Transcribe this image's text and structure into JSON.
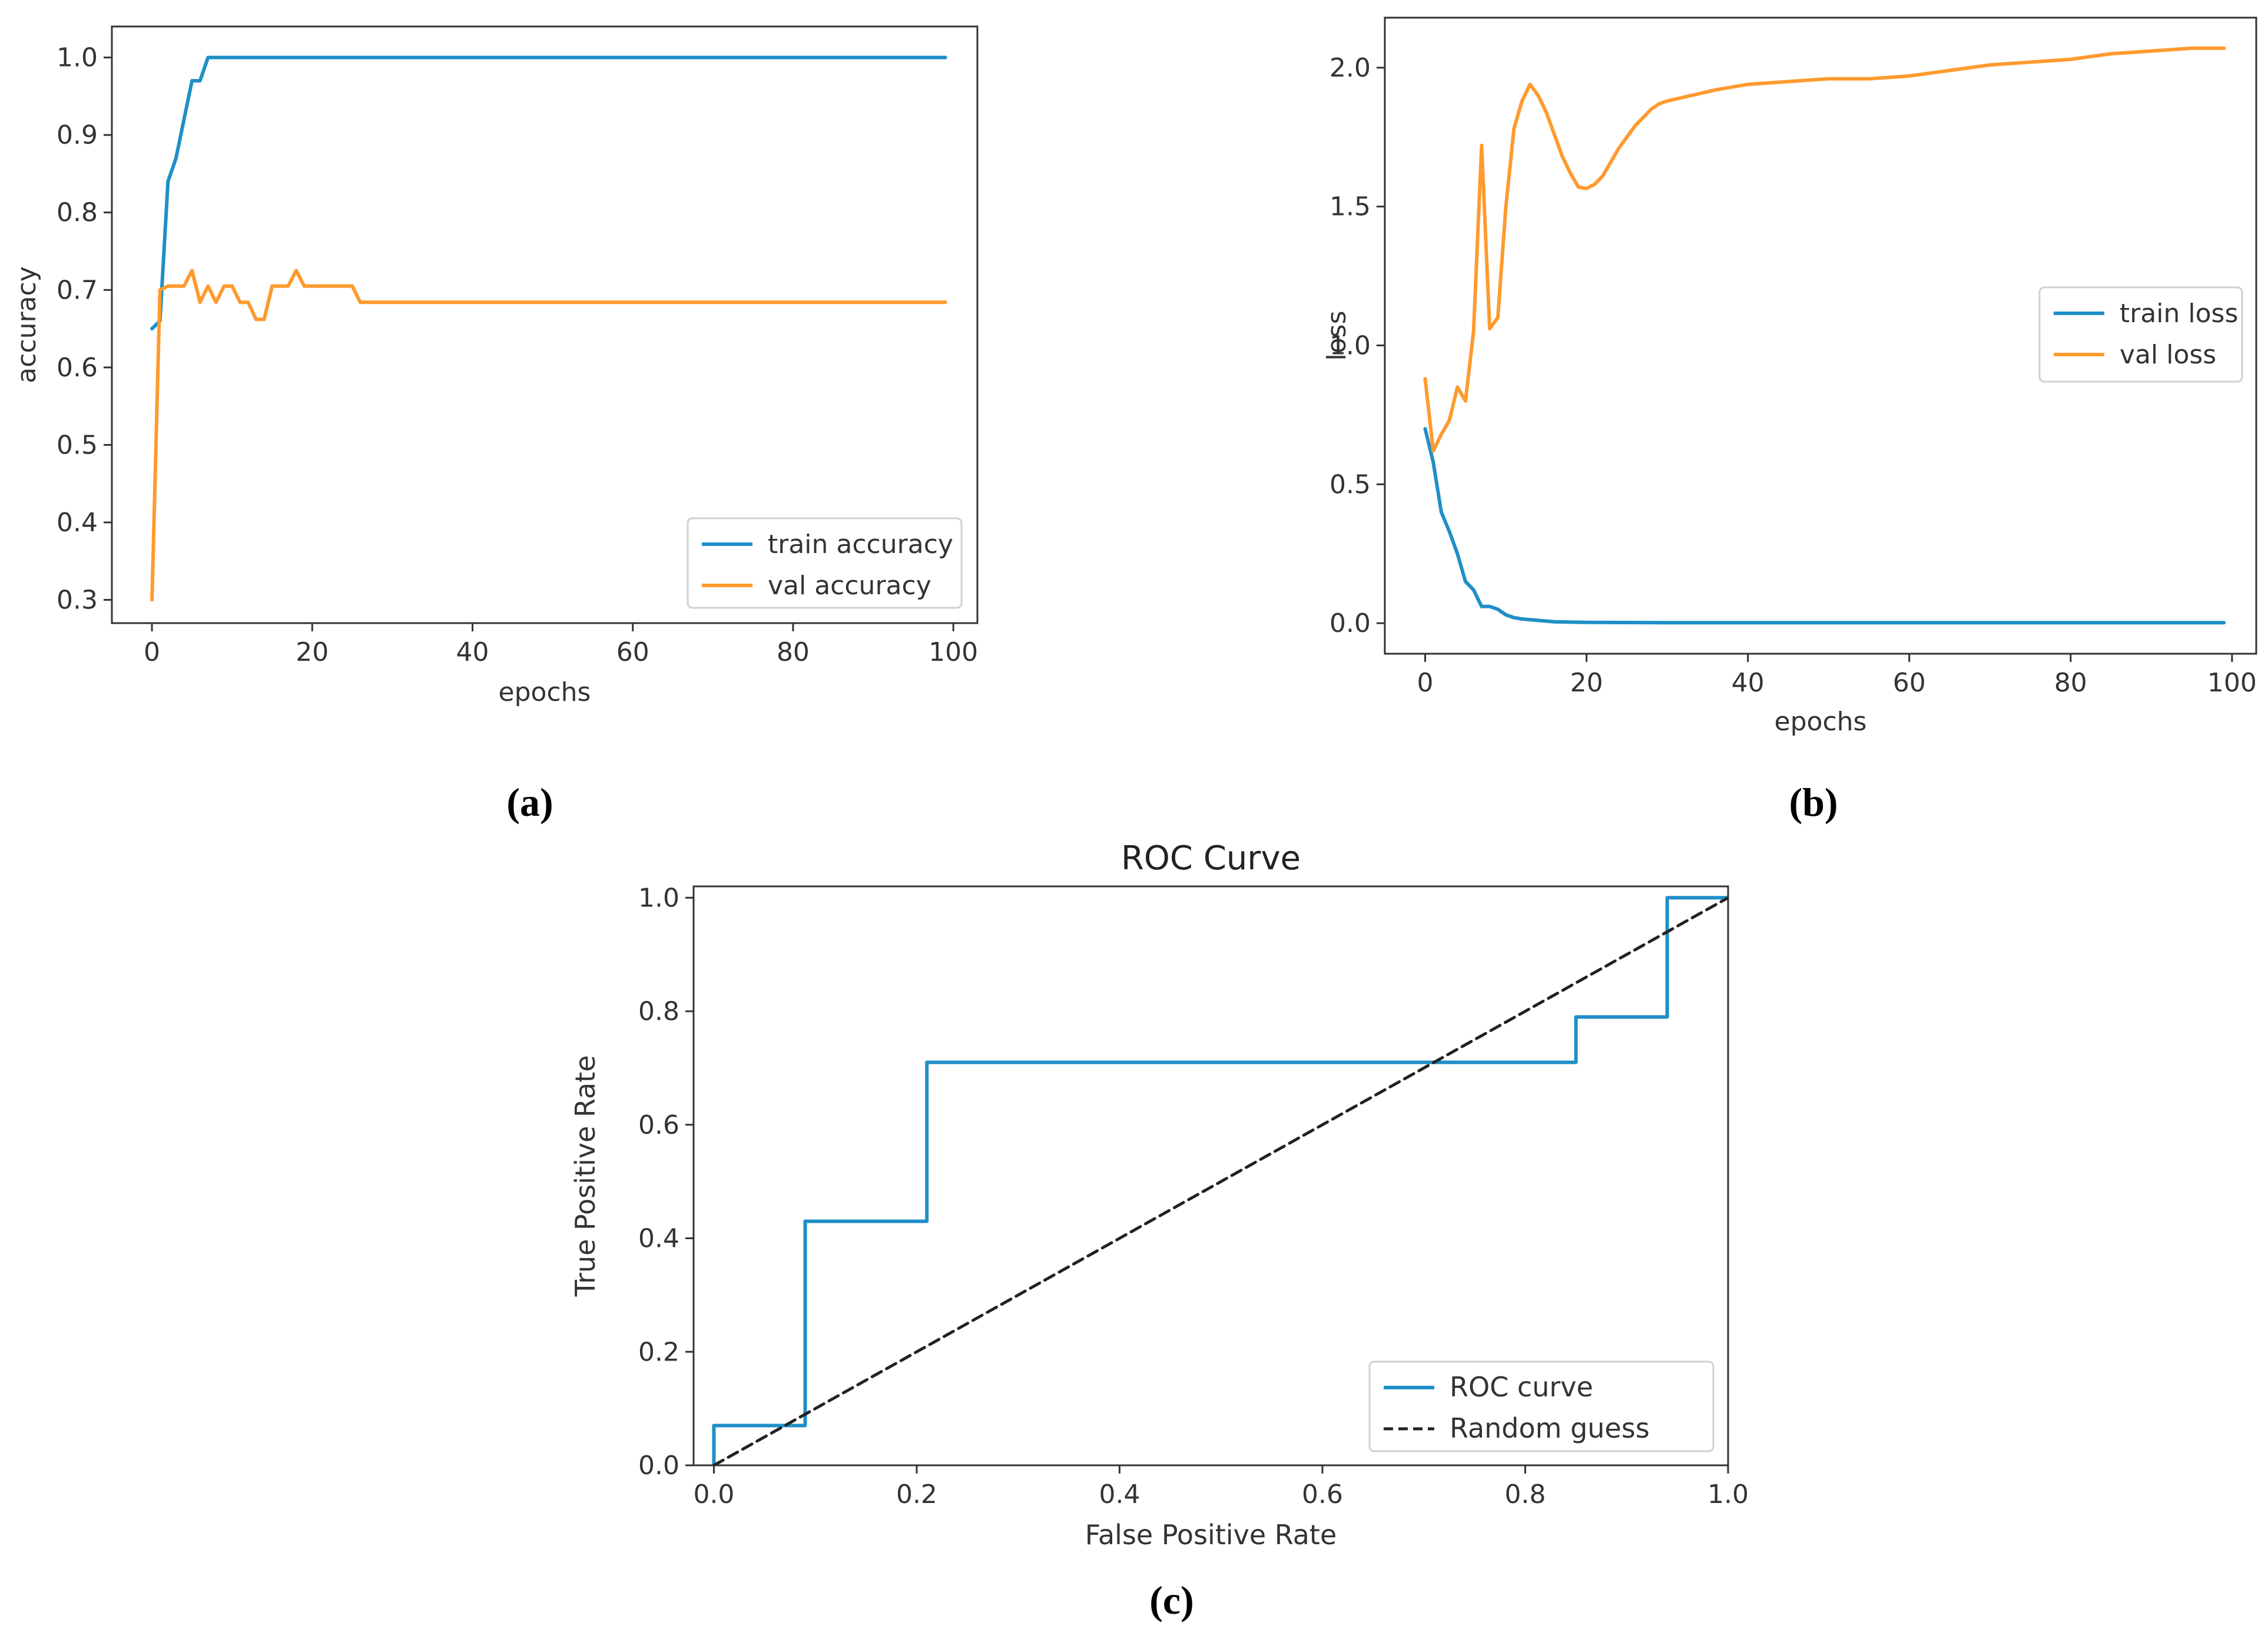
{
  "colors": {
    "blue": "#1f8fc7",
    "orange": "#ff9a2e",
    "dashed": "#222222",
    "axis": "#333333"
  },
  "chart_data": [
    {
      "type": "line",
      "panel_label": "(a)",
      "title": "",
      "xlabel": "epochs",
      "ylabel": "accuracy",
      "xlim": [
        -5,
        103
      ],
      "ylim": [
        0.27,
        1.04
      ],
      "xticks": [
        0,
        20,
        40,
        60,
        80,
        100
      ],
      "yticks": [
        0.3,
        0.4,
        0.5,
        0.6,
        0.7,
        0.8,
        0.9,
        1.0
      ],
      "ytick_labels": [
        "0.3",
        "0.4",
        "0.5",
        "0.6",
        "0.7",
        "0.8",
        "0.9",
        "1.0"
      ],
      "legend_position": "lower-right",
      "series": [
        {
          "name": "train accuracy",
          "color": "blue",
          "x": [
            0,
            1,
            2,
            3,
            4,
            5,
            6,
            7,
            8,
            99
          ],
          "y": [
            0.65,
            0.66,
            0.84,
            0.87,
            0.92,
            0.97,
            0.97,
            1.0,
            1.0,
            1.0
          ]
        },
        {
          "name": "val accuracy",
          "color": "orange",
          "x": [
            0,
            1,
            2,
            3,
            4,
            5,
            6,
            7,
            8,
            9,
            10,
            11,
            12,
            13,
            14,
            15,
            16,
            17,
            18,
            19,
            20,
            21,
            22,
            23,
            24,
            25,
            26,
            99
          ],
          "y": [
            0.3,
            0.7,
            0.705,
            0.705,
            0.705,
            0.725,
            0.684,
            0.705,
            0.684,
            0.705,
            0.705,
            0.684,
            0.684,
            0.662,
            0.662,
            0.705,
            0.705,
            0.705,
            0.725,
            0.705,
            0.705,
            0.705,
            0.705,
            0.705,
            0.705,
            0.705,
            0.684,
            0.684
          ]
        }
      ]
    },
    {
      "type": "line",
      "panel_label": "(b)",
      "title": "",
      "xlabel": "epochs",
      "ylabel": "loss",
      "xlim": [
        -5,
        103
      ],
      "ylim": [
        -0.11,
        2.18
      ],
      "xticks": [
        0,
        20,
        40,
        60,
        80,
        100
      ],
      "yticks": [
        0.0,
        0.5,
        1.0,
        1.5,
        2.0
      ],
      "ytick_labels": [
        "0.0",
        "0.5",
        "1.0",
        "1.5",
        "2.0"
      ],
      "legend_position": "center-right",
      "series": [
        {
          "name": "train loss",
          "color": "blue",
          "x": [
            0,
            1,
            2,
            3,
            4,
            5,
            6,
            7,
            8,
            9,
            10,
            11,
            12,
            14,
            16,
            20,
            30,
            50,
            99
          ],
          "y": [
            0.7,
            0.58,
            0.4,
            0.33,
            0.25,
            0.15,
            0.12,
            0.06,
            0.06,
            0.05,
            0.03,
            0.02,
            0.015,
            0.01,
            0.005,
            0.003,
            0.002,
            0.002,
            0.002
          ]
        },
        {
          "name": "val loss",
          "color": "orange",
          "x": [
            0,
            1,
            2,
            3,
            4,
            5,
            6,
            7,
            8,
            9,
            10,
            11,
            12,
            13,
            14,
            15,
            16,
            17,
            18,
            19,
            20,
            21,
            22,
            23,
            24,
            25,
            26,
            27,
            28,
            29,
            30,
            33,
            36,
            40,
            45,
            50,
            55,
            60,
            65,
            70,
            75,
            80,
            85,
            90,
            95,
            99
          ],
          "y": [
            0.88,
            0.62,
            0.68,
            0.73,
            0.85,
            0.8,
            1.05,
            1.72,
            1.06,
            1.1,
            1.5,
            1.78,
            1.88,
            1.94,
            1.9,
            1.84,
            1.76,
            1.68,
            1.62,
            1.57,
            1.565,
            1.58,
            1.61,
            1.66,
            1.71,
            1.75,
            1.79,
            1.82,
            1.85,
            1.87,
            1.88,
            1.9,
            1.92,
            1.94,
            1.95,
            1.96,
            1.96,
            1.97,
            1.99,
            2.01,
            2.02,
            2.03,
            2.05,
            2.06,
            2.07,
            2.07
          ]
        }
      ]
    },
    {
      "type": "line",
      "panel_label": "(c)",
      "title": "ROC Curve",
      "xlabel": "False Positive Rate",
      "ylabel": "True Positive Rate",
      "xlim": [
        -0.02,
        1.0
      ],
      "ylim": [
        0.0,
        1.02
      ],
      "xticks": [
        0.0,
        0.2,
        0.4,
        0.6,
        0.8,
        1.0
      ],
      "yticks": [
        0.0,
        0.2,
        0.4,
        0.6,
        0.8,
        1.0
      ],
      "xtick_labels": [
        "0.0",
        "0.2",
        "0.4",
        "0.6",
        "0.8",
        "1.0"
      ],
      "ytick_labels": [
        "0.0",
        "0.2",
        "0.4",
        "0.6",
        "0.8",
        "1.0"
      ],
      "legend_position": "lower-right",
      "series": [
        {
          "name": "ROC curve",
          "color": "blue",
          "dashed": false,
          "x": [
            0.0,
            0.0,
            0.09,
            0.09,
            0.21,
            0.21,
            0.85,
            0.85,
            0.94,
            0.94,
            1.0
          ],
          "y": [
            0.0,
            0.07,
            0.07,
            0.43,
            0.43,
            0.71,
            0.71,
            0.79,
            0.79,
            1.0,
            1.0
          ]
        },
        {
          "name": "Random guess",
          "color": "dashed",
          "dashed": true,
          "x": [
            0.0,
            1.0
          ],
          "y": [
            0.0,
            1.0
          ]
        }
      ]
    }
  ]
}
